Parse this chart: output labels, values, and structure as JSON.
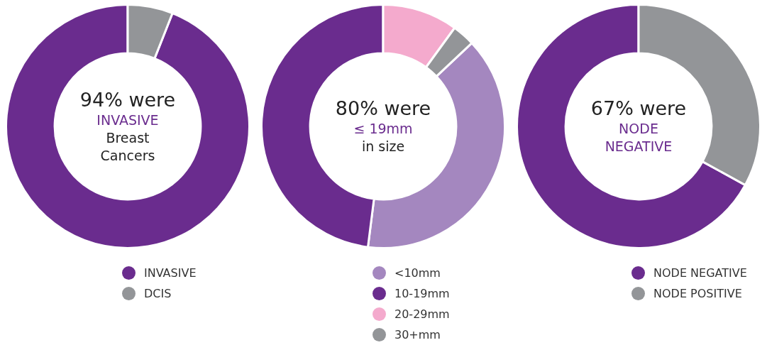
{
  "chart_data": [
    {
      "type": "donut",
      "title": "94% were",
      "subtitle": "INVASIVE",
      "annotations": [
        "Breast Cancers"
      ],
      "categories": [
        "INVASIVE",
        "DCIS"
      ],
      "values": [
        94,
        6
      ],
      "colors": [
        "#6a2c8e",
        "#939598"
      ],
      "legend": "bottom"
    },
    {
      "type": "donut",
      "title": "80% were",
      "subtitle": "≤ 19mm",
      "annotations": [
        "in size"
      ],
      "categories": [
        "<10mm",
        "10-19mm",
        "20-29mm",
        "30+mm"
      ],
      "values": [
        39,
        48,
        10,
        3
      ],
      "colors": [
        "#a487bf",
        "#6a2c8e",
        "#f4aacd",
        "#939598"
      ],
      "legend": "bottom"
    },
    {
      "type": "donut",
      "title": "67% were",
      "subtitle": "NODE NEGATIVE",
      "categories": [
        "NODE NEGATIVE",
        "NODE POSITIVE"
      ],
      "values": [
        67,
        33
      ],
      "colors": [
        "#6a2c8e",
        "#939598"
      ],
      "legend": "bottom"
    }
  ]
}
